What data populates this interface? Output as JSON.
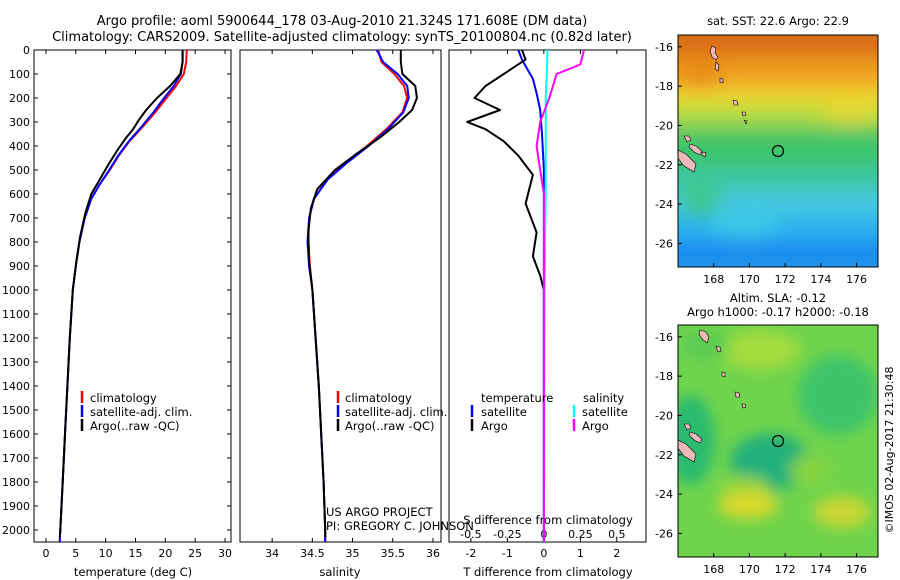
{
  "header": {
    "title_line1": "Argo profile: aoml 5900644_178 03-Aug-2010 21.324S 171.608E (DM data)",
    "title_line2": "Climatology: CARS2009. Satellite-adjusted climatology: synTS_20100804.nc (0.82d later)"
  },
  "credits": {
    "project": "US ARGO PROJECT",
    "pi": "PI: GREGORY C. JOHNSON",
    "stamp": "©IMOS 02-Aug-2017 21:30:48"
  },
  "colors": {
    "climatology": "#ff0000",
    "satellite": "#0000ff",
    "argo": "#000000",
    "sal_sat": "#00ffff",
    "sal_argo": "#ff00ff"
  },
  "chart_data": [
    {
      "type": "line",
      "id": "temperature",
      "xlabel": "temperature (deg C)",
      "ylabel": "",
      "xlim": [
        -2,
        31
      ],
      "ylim": [
        0,
        2050
      ],
      "xticks": [
        0,
        5,
        10,
        15,
        20,
        25,
        30
      ],
      "yticks": [
        0,
        100,
        200,
        300,
        400,
        500,
        600,
        700,
        800,
        900,
        1000,
        1100,
        1200,
        1300,
        1400,
        1500,
        1600,
        1700,
        1800,
        1900,
        2000
      ],
      "legend": [
        "climatology",
        "satellite-adj. clim.",
        "Argo(..raw -QC)"
      ],
      "series": [
        {
          "name": "climatology",
          "color": "#ff0000",
          "points": [
            [
              23.6,
              0
            ],
            [
              23.5,
              50
            ],
            [
              23.1,
              100
            ],
            [
              21.8,
              150
            ],
            [
              20.2,
              200
            ],
            [
              18.3,
              260
            ],
            [
              16.2,
              320
            ],
            [
              14.0,
              380
            ],
            [
              12.2,
              440
            ],
            [
              10.7,
              500
            ],
            [
              9.0,
              560
            ],
            [
              7.6,
              620
            ],
            [
              6.5,
              700
            ],
            [
              5.6,
              800
            ],
            [
              5.0,
              900
            ],
            [
              4.5,
              1000
            ],
            [
              4.0,
              1200
            ],
            [
              3.6,
              1400
            ],
            [
              3.2,
              1600
            ],
            [
              2.8,
              1800
            ],
            [
              2.4,
              2000
            ],
            [
              2.3,
              2050
            ]
          ]
        },
        {
          "name": "satellite",
          "color": "#0000ff",
          "points": [
            [
              22.9,
              0
            ],
            [
              22.9,
              50
            ],
            [
              22.6,
              100
            ],
            [
              21.4,
              150
            ],
            [
              19.8,
              200
            ],
            [
              18.0,
              260
            ],
            [
              16.0,
              320
            ],
            [
              13.9,
              380
            ],
            [
              12.1,
              440
            ],
            [
              10.6,
              500
            ],
            [
              9.0,
              560
            ],
            [
              7.6,
              620
            ],
            [
              6.5,
              700
            ],
            [
              5.6,
              800
            ],
            [
              5.0,
              900
            ],
            [
              4.5,
              1000
            ],
            [
              4.0,
              1200
            ],
            [
              3.6,
              1400
            ],
            [
              3.2,
              1600
            ],
            [
              2.8,
              1800
            ],
            [
              2.4,
              2000
            ],
            [
              2.3,
              2050
            ]
          ]
        },
        {
          "name": "Argo",
          "color": "#000000",
          "points": [
            [
              22.9,
              0
            ],
            [
              22.9,
              50
            ],
            [
              22.5,
              100
            ],
            [
              20.8,
              150
            ],
            [
              18.6,
              200
            ],
            [
              16.8,
              250
            ],
            [
              15.6,
              290
            ],
            [
              14.6,
              330
            ],
            [
              13.3,
              370
            ],
            [
              11.9,
              420
            ],
            [
              10.4,
              480
            ],
            [
              9.0,
              540
            ],
            [
              7.6,
              600
            ],
            [
              6.6,
              680
            ],
            [
              5.7,
              780
            ],
            [
              5.1,
              880
            ],
            [
              4.5,
              1000
            ],
            [
              4.0,
              1200
            ],
            [
              3.6,
              1400
            ],
            [
              3.2,
              1600
            ],
            [
              2.8,
              1800
            ],
            [
              2.4,
              2000
            ],
            [
              2.3,
              2030
            ]
          ]
        }
      ]
    },
    {
      "type": "line",
      "id": "salinity",
      "xlabel": "salinity",
      "ylabel": "",
      "xlim": [
        33.6,
        36.1
      ],
      "ylim": [
        0,
        2050
      ],
      "xticks": [
        34,
        34.5,
        35,
        35.5,
        36
      ],
      "tick_labels": [
        "34",
        "34.5",
        "35",
        "35.5",
        "36"
      ],
      "legend": [
        "climatology",
        "satellite-adj. clim.",
        "Argo(..raw -QC)"
      ],
      "series": [
        {
          "name": "climatology",
          "color": "#ff0000",
          "points": [
            [
              35.32,
              0
            ],
            [
              35.36,
              50
            ],
            [
              35.52,
              100
            ],
            [
              35.64,
              150
            ],
            [
              35.68,
              200
            ],
            [
              35.62,
              260
            ],
            [
              35.42,
              330
            ],
            [
              35.18,
              400
            ],
            [
              34.92,
              470
            ],
            [
              34.68,
              540
            ],
            [
              34.52,
              620
            ],
            [
              34.46,
              700
            ],
            [
              34.45,
              800
            ],
            [
              34.47,
              900
            ],
            [
              34.5,
              1000
            ],
            [
              34.54,
              1200
            ],
            [
              34.58,
              1400
            ],
            [
              34.61,
              1600
            ],
            [
              34.64,
              1800
            ],
            [
              34.66,
              2000
            ],
            [
              34.66,
              2050
            ]
          ]
        },
        {
          "name": "satellite",
          "color": "#0000ff",
          "points": [
            [
              35.3,
              0
            ],
            [
              35.38,
              50
            ],
            [
              35.56,
              100
            ],
            [
              35.68,
              150
            ],
            [
              35.7,
              200
            ],
            [
              35.63,
              260
            ],
            [
              35.44,
              330
            ],
            [
              35.2,
              400
            ],
            [
              34.93,
              470
            ],
            [
              34.69,
              540
            ],
            [
              34.52,
              620
            ],
            [
              34.46,
              700
            ],
            [
              34.44,
              800
            ],
            [
              34.46,
              900
            ],
            [
              34.5,
              1000
            ],
            [
              34.54,
              1200
            ],
            [
              34.58,
              1400
            ],
            [
              34.61,
              1600
            ],
            [
              34.64,
              1800
            ],
            [
              34.66,
              2000
            ],
            [
              34.66,
              2050
            ]
          ]
        },
        {
          "name": "Argo",
          "color": "#000000",
          "points": [
            [
              35.6,
              0
            ],
            [
              35.6,
              50
            ],
            [
              35.62,
              100
            ],
            [
              35.78,
              150
            ],
            [
              35.8,
              200
            ],
            [
              35.74,
              250
            ],
            [
              35.58,
              300
            ],
            [
              35.36,
              360
            ],
            [
              35.06,
              430
            ],
            [
              34.78,
              500
            ],
            [
              34.56,
              580
            ],
            [
              34.48,
              660
            ],
            [
              34.45,
              760
            ],
            [
              34.46,
              880
            ],
            [
              34.5,
              1000
            ],
            [
              34.54,
              1200
            ],
            [
              34.58,
              1400
            ],
            [
              34.61,
              1600
            ],
            [
              34.64,
              1800
            ],
            [
              34.66,
              2000
            ],
            [
              34.66,
              2030
            ]
          ]
        }
      ]
    },
    {
      "type": "line",
      "id": "difference",
      "xlabel": "T difference from climatology",
      "xlabel_top": "S difference from climatology",
      "xlim": [
        -2.6,
        2.8
      ],
      "ylim": [
        0,
        2050
      ],
      "xticks": [
        -2,
        -1,
        0,
        1,
        2
      ],
      "s_tick_labels": [
        "-0.5",
        "-0.25",
        "0",
        "0.25",
        "0.5"
      ],
      "legend_temperature_title": "temperature",
      "legend_salinity_title": "salinity",
      "legend": [
        "satellite",
        "Argo",
        "satellite",
        "Argo"
      ],
      "series": [
        {
          "name": "temperature satellite",
          "color": "#0000ff",
          "points": [
            [
              -0.7,
              0
            ],
            [
              -0.6,
              40
            ],
            [
              -0.45,
              80
            ],
            [
              -0.3,
              120
            ],
            [
              -0.2,
              180
            ],
            [
              -0.1,
              250
            ],
            [
              -0.05,
              350
            ],
            [
              0,
              500
            ],
            [
              0,
              800
            ],
            [
              0,
              2050
            ]
          ]
        },
        {
          "name": "temperature Argo",
          "color": "#000000",
          "points": [
            [
              -0.6,
              0
            ],
            [
              -0.5,
              40
            ],
            [
              -0.9,
              80
            ],
            [
              -1.6,
              150
            ],
            [
              -1.9,
              200
            ],
            [
              -1.2,
              250
            ],
            [
              -2.1,
              300
            ],
            [
              -1.6,
              330
            ],
            [
              -1.1,
              380
            ],
            [
              -0.7,
              440
            ],
            [
              -0.3,
              520
            ],
            [
              -0.5,
              640
            ],
            [
              -0.2,
              760
            ],
            [
              -0.3,
              860
            ],
            [
              -0.1,
              940
            ],
            [
              0,
              1000
            ],
            [
              0,
              2050
            ]
          ]
        },
        {
          "name": "salinity satellite",
          "color": "#00ffff",
          "points": [
            [
              0.1,
              0
            ],
            [
              0.08,
              100
            ],
            [
              0.05,
              200
            ],
            [
              0.05,
              400
            ],
            [
              0.05,
              600
            ],
            [
              0.02,
              1000
            ],
            [
              0,
              2050
            ]
          ]
        },
        {
          "name": "salinity Argo",
          "color": "#ff00ff",
          "points": [
            [
              1.1,
              0
            ],
            [
              1.0,
              60
            ],
            [
              0.35,
              100
            ],
            [
              0.15,
              200
            ],
            [
              -0.1,
              300
            ],
            [
              -0.2,
              400
            ],
            [
              -0.1,
              500
            ],
            [
              0,
              600
            ],
            [
              0,
              2050
            ]
          ]
        }
      ]
    },
    {
      "type": "heatmap",
      "id": "sst-map",
      "title": "sat. SST: 22.6 Argo: 22.9",
      "xlim": [
        166,
        177.2
      ],
      "ylim": [
        -27.2,
        -15.4
      ],
      "xticks": [
        168,
        170,
        172,
        174,
        176
      ],
      "yticks": [
        -16,
        -18,
        -20,
        -22,
        -24,
        -26
      ],
      "marker": {
        "lon": 171.6,
        "lat": -21.3
      }
    },
    {
      "type": "heatmap",
      "id": "sla-map",
      "title_line1": "Altim. SLA: -0.12",
      "title_line2": "Argo h1000: -0.17 h2000: -0.18",
      "xlim": [
        166,
        177.2
      ],
      "ylim": [
        -27.2,
        -15.4
      ],
      "xticks": [
        168,
        170,
        172,
        174,
        176
      ],
      "yticks": [
        -16,
        -18,
        -20,
        -22,
        -24,
        -26
      ],
      "marker": {
        "lon": 171.6,
        "lat": -21.3
      }
    }
  ]
}
